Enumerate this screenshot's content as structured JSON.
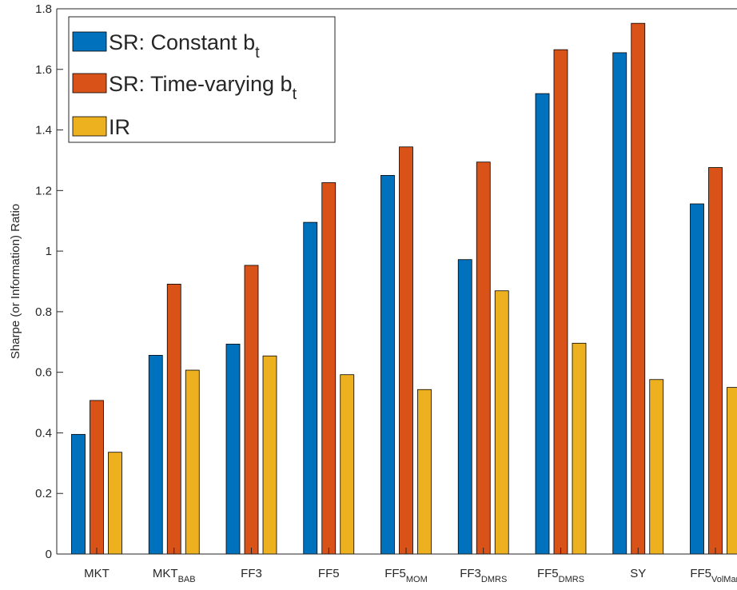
{
  "chart_data": {
    "type": "bar",
    "title": "",
    "xlabel": "",
    "ylabel": "Sharpe (or Information) Ratio",
    "ylim": [
      0,
      1.8
    ],
    "yticks": [
      "0",
      "0.2",
      "0.4",
      "0.6",
      "0.8",
      "1",
      "1.2",
      "1.4",
      "1.6",
      "1.8"
    ],
    "grid": false,
    "legend_position": "top-left",
    "categories": [
      {
        "label": "MKT",
        "sub": ""
      },
      {
        "label": "MKT",
        "sub": "BAB"
      },
      {
        "label": "FF3",
        "sub": ""
      },
      {
        "label": "FF5",
        "sub": ""
      },
      {
        "label": "FF5",
        "sub": "MOM"
      },
      {
        "label": "FF3",
        "sub": "DMRS"
      },
      {
        "label": "FF5",
        "sub": "DMRS"
      },
      {
        "label": "SY",
        "sub": ""
      },
      {
        "label": "FF5",
        "sub": "VolMan"
      }
    ],
    "series": [
      {
        "name": "SR: Constant b",
        "name_sub": "t",
        "color": "#0072BD",
        "values": [
          0.395,
          0.656,
          0.693,
          1.095,
          1.25,
          0.972,
          1.52,
          1.655,
          1.156
        ]
      },
      {
        "name": "SR: Time-varying b",
        "name_sub": "t",
        "color": "#D95319",
        "values": [
          0.507,
          0.891,
          0.953,
          1.226,
          1.344,
          1.294,
          1.665,
          1.752,
          1.276
        ]
      },
      {
        "name": "IR",
        "name_sub": "",
        "color": "#EDB120",
        "values": [
          0.336,
          0.607,
          0.654,
          0.592,
          0.543,
          0.869,
          0.696,
          0.576,
          0.55
        ]
      }
    ]
  }
}
